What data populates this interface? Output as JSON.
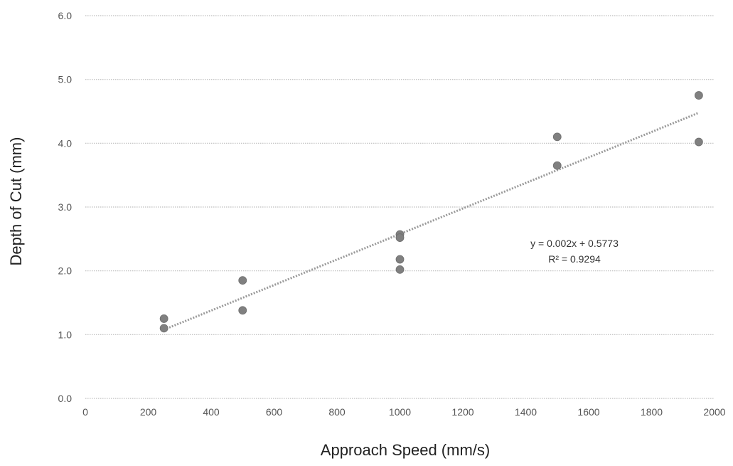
{
  "chart_data": {
    "type": "scatter",
    "title": "",
    "xlabel": "Approach Speed (mm/s)",
    "ylabel": "Depth of Cut (mm)",
    "xlim": [
      0,
      2000
    ],
    "ylim": [
      0,
      6
    ],
    "x_ticks": [
      "0",
      "200",
      "400",
      "600",
      "800",
      "1000",
      "1200",
      "1400",
      "1600",
      "1800",
      "2000"
    ],
    "y_ticks": [
      "0.0",
      "1.0",
      "2.0",
      "3.0",
      "4.0",
      "5.0",
      "6.0"
    ],
    "grid": "horizontal dotted",
    "legend": "none",
    "series": [
      {
        "points": [
          {
            "x": 250,
            "y": 1.25
          },
          {
            "x": 250,
            "y": 1.1
          },
          {
            "x": 500,
            "y": 1.85
          },
          {
            "x": 500,
            "y": 1.38
          },
          {
            "x": 1000,
            "y": 2.57
          },
          {
            "x": 1000,
            "y": 2.52
          },
          {
            "x": 1000,
            "y": 2.18
          },
          {
            "x": 1000,
            "y": 2.02
          },
          {
            "x": 1500,
            "y": 4.1
          },
          {
            "x": 1500,
            "y": 3.65
          },
          {
            "x": 1950,
            "y": 4.75
          },
          {
            "x": 1950,
            "y": 4.02
          }
        ],
        "color": "#808080"
      }
    ],
    "trendline": {
      "type": "linear",
      "slope": 0.002,
      "intercept": 0.5773,
      "x_start": 250,
      "x_end": 1950,
      "color": "#9a9a9a"
    },
    "annotations": {
      "equation": "y = 0.002x + 0.5773",
      "r_squared": "R² = 0.9294"
    }
  }
}
